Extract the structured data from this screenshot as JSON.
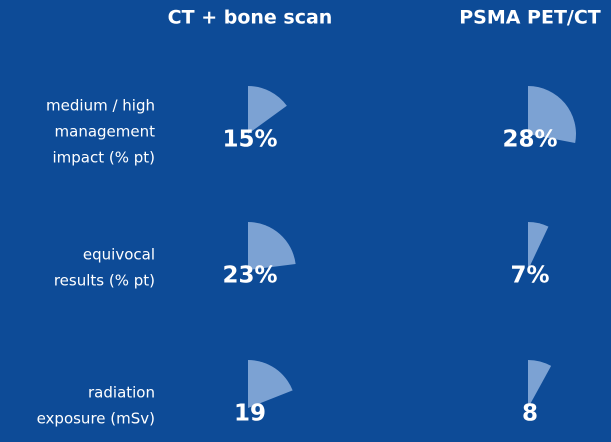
{
  "chart_data": {
    "type": "wedge",
    "columns": [
      "CT + bone scan",
      "PSMA PET/CT"
    ],
    "categories": [
      [
        "medium / high",
        "management",
        "impact (% pt)"
      ],
      [
        "equivocal",
        "results (% pt)"
      ],
      [
        "radiation",
        "exposure (mSv)"
      ]
    ],
    "series": [
      {
        "name": "CT + bone scan",
        "color": "#86a9d8",
        "values": [
          15,
          23,
          19
        ],
        "value_labels": [
          "15%",
          "23%",
          "19"
        ]
      },
      {
        "name": "PSMA PET/CT",
        "color": "#86a9d8",
        "values": [
          28,
          7,
          8
        ],
        "value_labels": [
          "28%",
          "7%",
          "8"
        ]
      }
    ],
    "full_circle": 100
  }
}
